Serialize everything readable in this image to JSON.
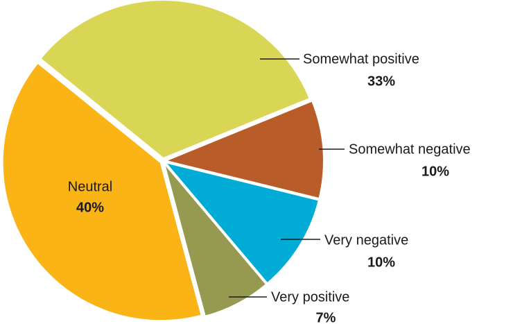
{
  "chart_data": {
    "type": "pie",
    "categories": [
      "Somewhat positive",
      "Somewhat negative",
      "Very negative",
      "Very positive",
      "Neutral"
    ],
    "values": [
      33,
      10,
      10,
      7,
      40
    ],
    "value_labels": [
      "33%",
      "10%",
      "10%",
      "7%",
      "40%"
    ],
    "colors": [
      "#d9d655",
      "#b85c29",
      "#00acd6",
      "#969a50",
      "#fbb416"
    ]
  }
}
